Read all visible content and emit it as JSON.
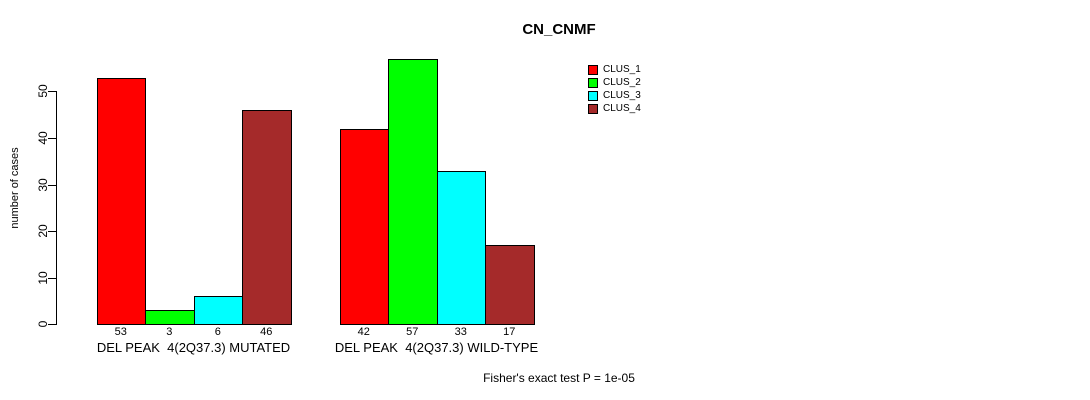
{
  "chart_data": {
    "type": "bar",
    "title": "CN_CNMF",
    "ylabel": "number of cases",
    "xlabel": "",
    "ylim": [
      0,
      57
    ],
    "yticks": [
      0,
      10,
      20,
      30,
      40,
      50
    ],
    "grid": false,
    "legend_position": "top-right",
    "bar_value_labels_shown": true,
    "groups": [
      {
        "label": "DEL PEAK  4(2Q37.3) MUTATED",
        "values": [
          53,
          3,
          6,
          46
        ]
      },
      {
        "label": "DEL PEAK  4(2Q37.3) WILD-TYPE",
        "values": [
          42,
          57,
          33,
          17
        ]
      }
    ],
    "series": [
      {
        "name": "CLUS_1",
        "color": "#FF0000"
      },
      {
        "name": "CLUS_2",
        "color": "#00FF00"
      },
      {
        "name": "CLUS_3",
        "color": "#00FFFF"
      },
      {
        "name": "CLUS_4",
        "color": "#A52A2A"
      }
    ],
    "footer": "Fisher's exact test P = 1e-05",
    "colors": {
      "background": "#FFFFFF",
      "axis": "#000000",
      "bar_border": "#000000",
      "text": "#000000"
    }
  }
}
